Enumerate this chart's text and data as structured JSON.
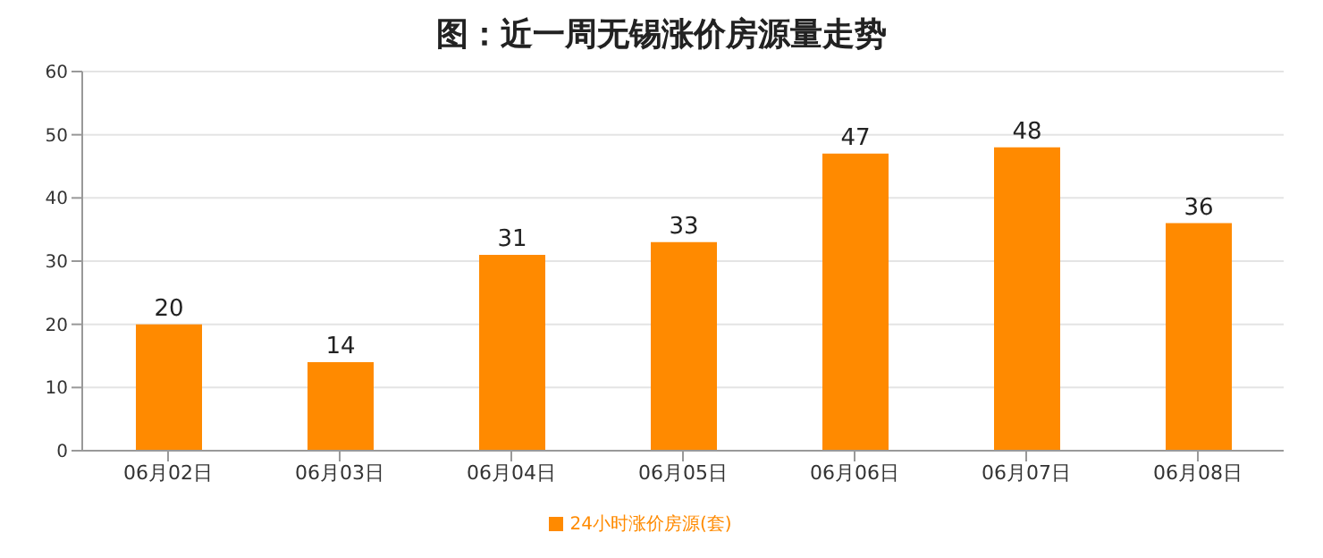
{
  "chart_data": {
    "type": "bar",
    "title": "图：近一周无锡涨价房源量走势",
    "categories": [
      "06月02日",
      "06月03日",
      "06月04日",
      "06月05日",
      "06月06日",
      "06月07日",
      "06月08日"
    ],
    "series": [
      {
        "name": "24小时涨价房源(套)",
        "color": "#ff8a00",
        "values": [
          20,
          14,
          31,
          33,
          47,
          48,
          36
        ]
      }
    ],
    "ylim": [
      0,
      60
    ],
    "yticks": [
      0,
      10,
      20,
      30,
      40,
      50,
      60
    ],
    "grid": "y",
    "legend": "bottom",
    "data_labels": true
  }
}
